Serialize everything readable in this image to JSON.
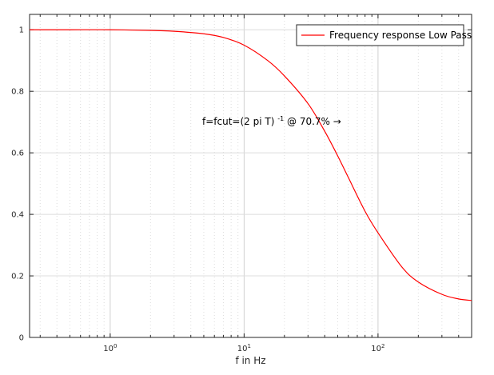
{
  "chart_data": {
    "type": "line",
    "xlabel": "f in Hz",
    "ylabel": "",
    "xscale": "log",
    "xlim": [
      0.25,
      500
    ],
    "ylim": [
      0,
      1.05
    ],
    "grid": true,
    "legend_position": "top-right",
    "y_ticks": [
      "0",
      "0.2",
      "0.4",
      "0.6",
      "0.8",
      "1"
    ],
    "x_ticks": [
      {
        "base": "10",
        "exp": "0",
        "value": 1
      },
      {
        "base": "10",
        "exp": "1",
        "value": 10
      },
      {
        "base": "10",
        "exp": "2",
        "value": 100
      }
    ],
    "series": [
      {
        "name": "Frequency response Low Pass",
        "color": "#ff0000",
        "x": [
          0.25,
          0.5,
          1,
          2,
          3,
          5,
          7,
          10,
          15,
          20,
          30,
          40,
          50,
          60,
          80,
          100,
          150,
          200,
          300,
          400,
          500
        ],
        "y": [
          1.0,
          1.0,
          1.0,
          0.998,
          0.995,
          0.987,
          0.975,
          0.95,
          0.9,
          0.85,
          0.76,
          0.67,
          0.59,
          0.52,
          0.41,
          0.34,
          0.23,
          0.18,
          0.14,
          0.125,
          0.12
        ]
      }
    ],
    "annotation": {
      "text_main": "f=fcut=(2 pi T)",
      "superscript": "-1",
      "text_tail": " @ 70.7% →"
    }
  }
}
